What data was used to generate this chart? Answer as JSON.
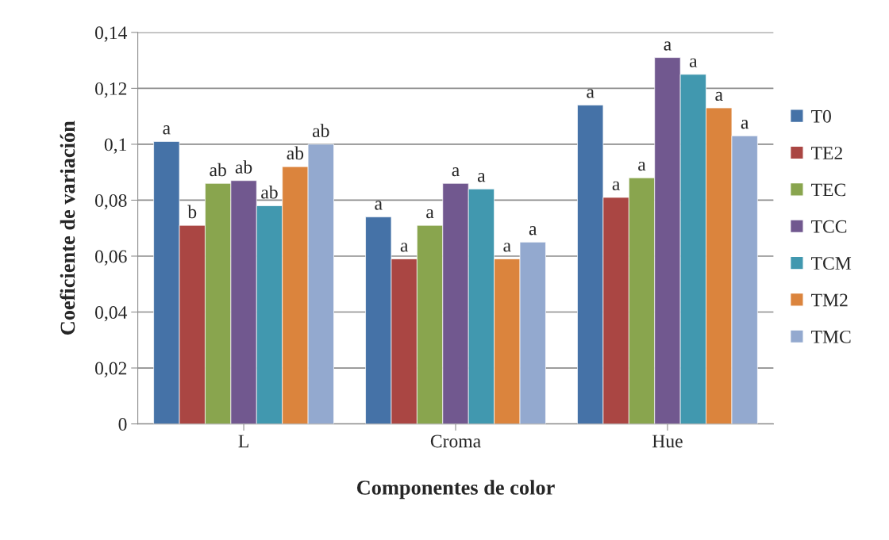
{
  "chart_data": {
    "type": "bar",
    "xlabel": "Componentes de color",
    "ylabel": "Coeficiente de variación",
    "categories": [
      "L",
      "Croma",
      "Hue"
    ],
    "series": [
      {
        "name": "T0",
        "color": "#4572a7",
        "values": [
          0.101,
          0.074,
          0.114
        ],
        "value_labels": [
          "a",
          "a",
          "a"
        ]
      },
      {
        "name": "TE2",
        "color": "#aa4643",
        "values": [
          0.071,
          0.059,
          0.081
        ],
        "value_labels": [
          "b",
          "a",
          "a"
        ]
      },
      {
        "name": "TEC",
        "color": "#89a54e",
        "values": [
          0.086,
          0.071,
          0.088
        ],
        "value_labels": [
          "ab",
          "a",
          "a"
        ]
      },
      {
        "name": "TCC",
        "color": "#71588f",
        "values": [
          0.087,
          0.086,
          0.131
        ],
        "value_labels": [
          "ab",
          "a",
          "a"
        ]
      },
      {
        "name": "TCM",
        "color": "#4198af",
        "values": [
          0.078,
          0.084,
          0.125
        ],
        "value_labels": [
          "ab",
          "a",
          "a"
        ]
      },
      {
        "name": "TM2",
        "color": "#db843d",
        "values": [
          0.092,
          0.059,
          0.113
        ],
        "value_labels": [
          "ab",
          "a",
          "a"
        ]
      },
      {
        "name": "TMC",
        "color": "#93a9cf",
        "values": [
          0.1,
          0.065,
          0.103
        ],
        "value_labels": [
          "ab",
          "a",
          "a"
        ]
      }
    ],
    "ylim": [
      0,
      0.14
    ],
    "yticks": [
      0,
      {
        "value": 0.02,
        "label": "0,02"
      },
      {
        "value": 0.04,
        "label": "0,04"
      },
      {
        "value": 0.06,
        "label": "0,06"
      },
      {
        "value": 0.08,
        "label": "0,08"
      },
      {
        "value": 0.1,
        "label": "0,1"
      },
      {
        "value": 0.12,
        "label": "0,12"
      },
      {
        "value": 0.14,
        "label": "0,14"
      }
    ],
    "grid": "y",
    "legend": "right"
  }
}
